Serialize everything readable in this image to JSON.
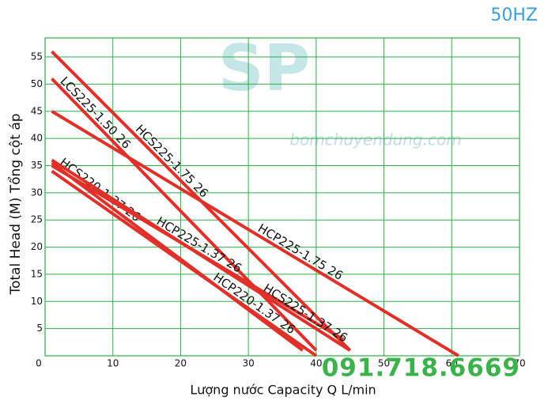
{
  "chart_data": {
    "type": "line",
    "frequency_label": "50HZ",
    "x_label": "Lượng nước Capacity Q L/min",
    "y_label": "Total Head (M) Tổng cột áp",
    "watermark": {
      "logo": "SP",
      "site": "bomchuyendung.com"
    },
    "phone": "091.718.6669",
    "xlim": [
      0,
      70
    ],
    "xticks": [
      0,
      10,
      20,
      30,
      40,
      50,
      60,
      70
    ],
    "ylim": [
      0,
      58.5
    ],
    "yticks": [
      5,
      10,
      15,
      20,
      25,
      30,
      35,
      40,
      45,
      50,
      55
    ],
    "grid": true,
    "series": [
      {
        "name": "LCS225-1.50 26",
        "color": "#e0302a",
        "x": [
          1,
          40
        ],
        "values": [
          51,
          1
        ]
      },
      {
        "name": "HCS225-1.75 26",
        "color": "#e0302a",
        "x": [
          1,
          45
        ],
        "values": [
          56,
          1
        ]
      },
      {
        "name": "HCP225-1.75 26",
        "color": "#e0302a",
        "x": [
          1,
          61
        ],
        "values": [
          45,
          0
        ]
      },
      {
        "name": "HCS220-1.37 26",
        "color": "#e0302a",
        "x": [
          1,
          38
        ],
        "values": [
          35.5,
          1
        ]
      },
      {
        "name": "HCP225-1.37 26",
        "color": "#e0302a",
        "x": [
          1,
          44
        ],
        "values": [
          35,
          3
        ]
      },
      {
        "name": "HCP220-1.37 26",
        "color": "#e0302a",
        "x": [
          1,
          40
        ],
        "values": [
          34,
          0
        ]
      },
      {
        "name": "HCS225-1.37 26",
        "color": "#e0302a",
        "x": [
          1,
          45
        ],
        "values": [
          36,
          1
        ]
      }
    ]
  }
}
